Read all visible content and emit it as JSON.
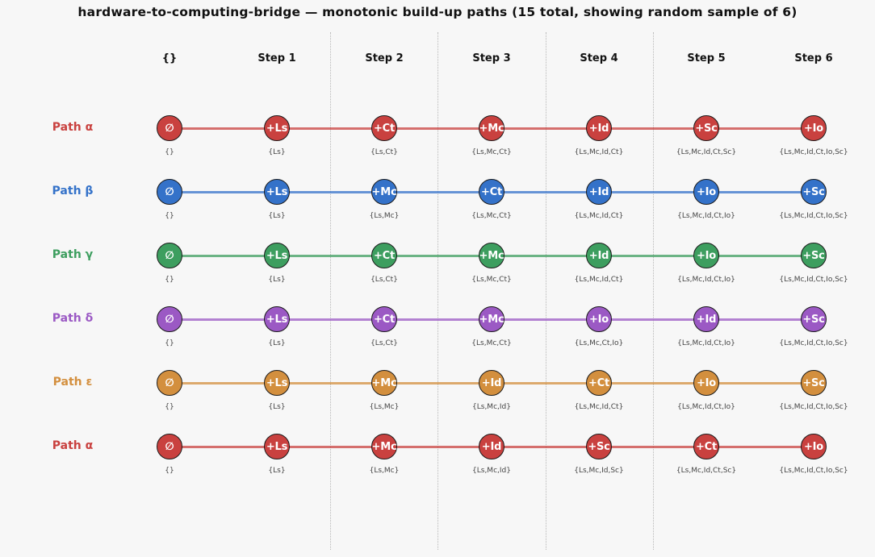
{
  "title": "hardware-to-computing-bridge — monotonic build-up paths  (15 total, showing random sample of 6)",
  "columns": [
    "{}",
    "Step 1",
    "Step 2",
    "Step 3",
    "Step 4",
    "Step 5",
    "Step 6"
  ],
  "paths": [
    {
      "label": "Path α",
      "color": "#c9413f",
      "nodes": [
        "∅",
        "+Ls",
        "+Ct",
        "+Mc",
        "+Id",
        "+Sc",
        "+Io"
      ],
      "sets": [
        "{}",
        "{Ls}",
        "{Ls,Ct}",
        "{Ls,Mc,Ct}",
        "{Ls,Mc,Id,Ct}",
        "{Ls,Mc,Id,Ct,Sc}",
        "{Ls,Mc,Id,Ct,Io,Sc}"
      ]
    },
    {
      "label": "Path β",
      "color": "#3472c9",
      "nodes": [
        "∅",
        "+Ls",
        "+Mc",
        "+Ct",
        "+Id",
        "+Io",
        "+Sc"
      ],
      "sets": [
        "{}",
        "{Ls}",
        "{Ls,Mc}",
        "{Ls,Mc,Ct}",
        "{Ls,Mc,Id,Ct}",
        "{Ls,Mc,Id,Ct,Io}",
        "{Ls,Mc,Id,Ct,Io,Sc}"
      ]
    },
    {
      "label": "Path γ",
      "color": "#3d9e5f",
      "nodes": [
        "∅",
        "+Ls",
        "+Ct",
        "+Mc",
        "+Id",
        "+Io",
        "+Sc"
      ],
      "sets": [
        "{}",
        "{Ls}",
        "{Ls,Ct}",
        "{Ls,Mc,Ct}",
        "{Ls,Mc,Id,Ct}",
        "{Ls,Mc,Id,Ct,Io}",
        "{Ls,Mc,Id,Ct,Io,Sc}"
      ]
    },
    {
      "label": "Path δ",
      "color": "#9b59c4",
      "nodes": [
        "∅",
        "+Ls",
        "+Ct",
        "+Mc",
        "+Io",
        "+Id",
        "+Sc"
      ],
      "sets": [
        "{}",
        "{Ls}",
        "{Ls,Ct}",
        "{Ls,Mc,Ct}",
        "{Ls,Mc,Ct,Io}",
        "{Ls,Mc,Id,Ct,Io}",
        "{Ls,Mc,Id,Ct,Io,Sc}"
      ]
    },
    {
      "label": "Path ε",
      "color": "#d38f3e",
      "nodes": [
        "∅",
        "+Ls",
        "+Mc",
        "+Id",
        "+Ct",
        "+Io",
        "+Sc"
      ],
      "sets": [
        "{}",
        "{Ls}",
        "{Ls,Mc}",
        "{Ls,Mc,Id}",
        "{Ls,Mc,Id,Ct}",
        "{Ls,Mc,Id,Ct,Io}",
        "{Ls,Mc,Id,Ct,Io,Sc}"
      ]
    },
    {
      "label": "Path α",
      "color": "#c9413f",
      "nodes": [
        "∅",
        "+Ls",
        "+Mc",
        "+Id",
        "+Sc",
        "+Ct",
        "+Io"
      ],
      "sets": [
        "{}",
        "{Ls}",
        "{Ls,Mc}",
        "{Ls,Mc,Id}",
        "{Ls,Mc,Id,Sc}",
        "{Ls,Mc,Id,Ct,Sc}",
        "{Ls,Mc,Id,Ct,Io,Sc}"
      ]
    }
  ]
}
